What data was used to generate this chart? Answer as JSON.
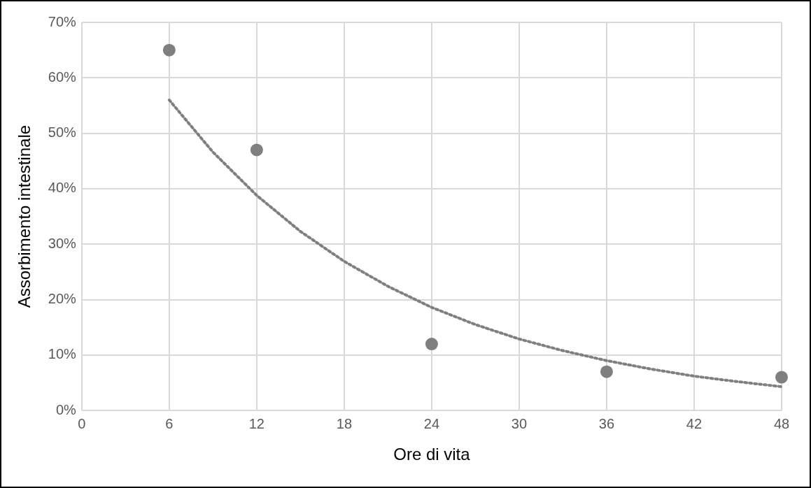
{
  "chart_data": {
    "type": "scatter",
    "xlabel": "Ore di vita",
    "ylabel": "Assorbimento intestinale",
    "series": [
      {
        "type": "scatter",
        "color": "#7f7f7f",
        "marker": "circle",
        "x": [
          6,
          12,
          24,
          36,
          48
        ],
        "values": [
          65,
          47,
          12,
          7,
          6
        ]
      },
      {
        "type": "line",
        "color": "#7f7f7f",
        "marker": "none",
        "line_style": "dotted",
        "x": [
          6,
          9,
          12,
          15,
          18,
          21,
          24,
          27,
          30,
          33,
          36,
          39,
          42,
          45,
          48
        ],
        "values": [
          56,
          46.6,
          38.8,
          32.3,
          26.9,
          22.4,
          18.6,
          15.5,
          12.9,
          10.8,
          9.0,
          7.5,
          6.2,
          5.2,
          4.3
        ]
      }
    ],
    "xlim": [
      0,
      48
    ],
    "xticks": [
      0,
      6,
      12,
      18,
      24,
      30,
      36,
      42,
      48
    ],
    "ylim": [
      0,
      70
    ],
    "yticks": [
      {
        "value": 0,
        "label": "0%"
      },
      {
        "value": 10,
        "label": "10%"
      },
      {
        "value": 20,
        "label": "20%"
      },
      {
        "value": 30,
        "label": "30%"
      },
      {
        "value": 40,
        "label": "40%"
      },
      {
        "value": 50,
        "label": "50%"
      },
      {
        "value": 60,
        "label": "60%"
      },
      {
        "value": 70,
        "label": "70%"
      }
    ],
    "grid": true,
    "legend": false
  }
}
